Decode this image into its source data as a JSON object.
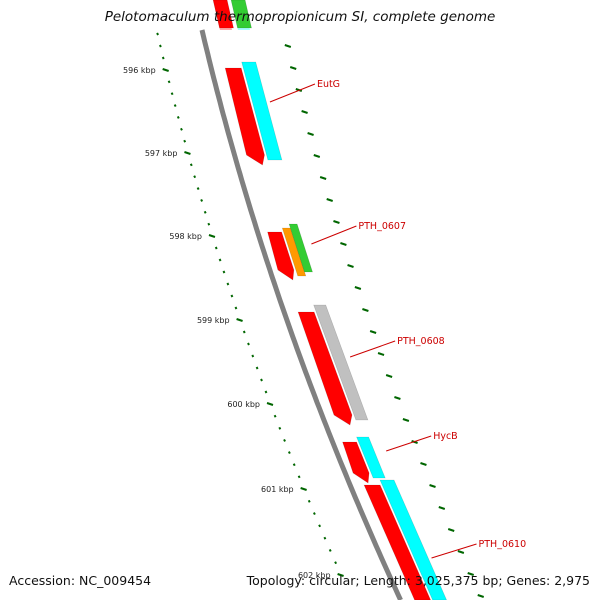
{
  "title": "Pelotomaculum thermopropionicum SI, complete genome",
  "footer": {
    "accession": "Accession: NC_009454",
    "topology": "Topology: circular; Length: 3,025,375 bp; Genes: 2,975"
  },
  "colors": {
    "background": "#ffffff",
    "backbone": "#808080",
    "forward_cds": "#ff0000",
    "feature_cyan": "#00ffff",
    "feature_green": "#33cc33",
    "feature_orange": "#ff9900",
    "feature_gray": "#c0c0c0",
    "tick_color": "#006600",
    "gene_label_color": "#cc0000"
  },
  "ruler": {
    "unit": "kbp",
    "labels": [
      "596 kbp",
      "597 kbp",
      "598 kbp",
      "599 kbp",
      "600 kbp",
      "601 kbp",
      "602 kbp"
    ],
    "minor_ticks_per_kbp": 7
  },
  "gene_labels": [
    "EutG",
    "PTH_0607",
    "PTH_0608",
    "HycB",
    "PTH_0610"
  ]
}
